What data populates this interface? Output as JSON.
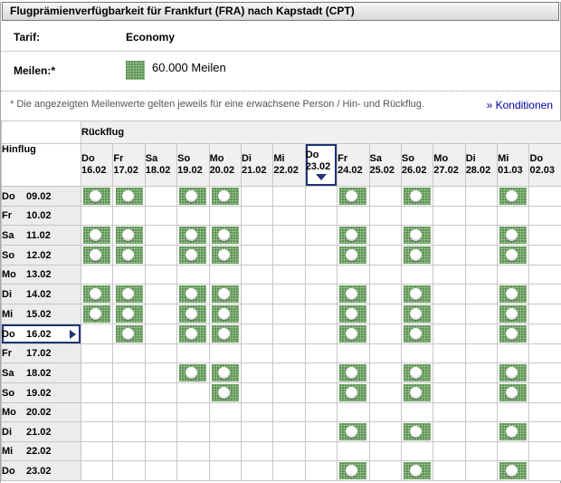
{
  "title": "Flugprämienverfügbarkeit für Frankfurt (FRA) nach Kapstadt (CPT)",
  "tarif": {
    "label": "Tarif:",
    "value": "Economy"
  },
  "meilen": {
    "label": "Meilen:*",
    "value": "60.000 Meilen",
    "icon": "green-dotted-square"
  },
  "note": "* Die angezeigten Meilenwerte gelten jeweils für eine erwachsene Person / Hin- und Rückflug.",
  "konditionen_link": "» Konditionen",
  "colors": {
    "availability_green": "#4e8b42",
    "link_blue": "#0000a0",
    "selected_navy": "#1e3473",
    "header_bg": "#f0f0f0",
    "row_header_bg": "#ececec"
  },
  "table": {
    "outbound_label": "Hinflug",
    "return_label": "Rückflug",
    "availability_icon": "green-dotted-award-dot",
    "columns": [
      {
        "day": "Do",
        "date": "16.02",
        "selected": false
      },
      {
        "day": "Fr",
        "date": "17.02",
        "selected": false
      },
      {
        "day": "Sa",
        "date": "18.02",
        "selected": false
      },
      {
        "day": "So",
        "date": "19.02",
        "selected": false
      },
      {
        "day": "Mo",
        "date": "20.02",
        "selected": false
      },
      {
        "day": "Di",
        "date": "21.02",
        "selected": false
      },
      {
        "day": "Mi",
        "date": "22.02",
        "selected": false
      },
      {
        "day": "Do",
        "date": "23.02",
        "selected": true
      },
      {
        "day": "Fr",
        "date": "24.02",
        "selected": false
      },
      {
        "day": "Sa",
        "date": "25.02",
        "selected": false
      },
      {
        "day": "So",
        "date": "26.02",
        "selected": false
      },
      {
        "day": "Mo",
        "date": "27.02",
        "selected": false
      },
      {
        "day": "Di",
        "date": "28.02",
        "selected": false
      },
      {
        "day": "Mi",
        "date": "01.03",
        "selected": false
      },
      {
        "day": "Do",
        "date": "02.03",
        "selected": false
      }
    ],
    "rows": [
      {
        "day": "Do",
        "date": "09.02",
        "selected": false,
        "availability": [
          1,
          1,
          0,
          1,
          1,
          0,
          0,
          0,
          1,
          0,
          1,
          0,
          0,
          1,
          0
        ]
      },
      {
        "day": "Fr",
        "date": "10.02",
        "selected": false,
        "availability": [
          0,
          0,
          0,
          0,
          0,
          0,
          0,
          0,
          0,
          0,
          0,
          0,
          0,
          0,
          0
        ]
      },
      {
        "day": "Sa",
        "date": "11.02",
        "selected": false,
        "availability": [
          1,
          1,
          0,
          1,
          1,
          0,
          0,
          0,
          1,
          0,
          1,
          0,
          0,
          1,
          0
        ]
      },
      {
        "day": "So",
        "date": "12.02",
        "selected": false,
        "availability": [
          1,
          1,
          0,
          1,
          1,
          0,
          0,
          0,
          1,
          0,
          1,
          0,
          0,
          1,
          0
        ]
      },
      {
        "day": "Mo",
        "date": "13.02",
        "selected": false,
        "availability": [
          0,
          0,
          0,
          0,
          0,
          0,
          0,
          0,
          0,
          0,
          0,
          0,
          0,
          0,
          0
        ]
      },
      {
        "day": "Di",
        "date": "14.02",
        "selected": false,
        "availability": [
          1,
          1,
          0,
          1,
          1,
          0,
          0,
          0,
          1,
          0,
          1,
          0,
          0,
          1,
          0
        ]
      },
      {
        "day": "Mi",
        "date": "15.02",
        "selected": false,
        "availability": [
          1,
          1,
          0,
          1,
          1,
          0,
          0,
          0,
          1,
          0,
          1,
          0,
          0,
          1,
          0
        ]
      },
      {
        "day": "Do",
        "date": "16.02",
        "selected": true,
        "availability": [
          0,
          1,
          0,
          1,
          1,
          0,
          0,
          0,
          1,
          0,
          1,
          0,
          0,
          1,
          0
        ]
      },
      {
        "day": "Fr",
        "date": "17.02",
        "selected": false,
        "availability": [
          0,
          0,
          0,
          0,
          0,
          0,
          0,
          0,
          0,
          0,
          0,
          0,
          0,
          0,
          0
        ]
      },
      {
        "day": "Sa",
        "date": "18.02",
        "selected": false,
        "availability": [
          0,
          0,
          0,
          1,
          1,
          0,
          0,
          0,
          1,
          0,
          1,
          0,
          0,
          1,
          0
        ]
      },
      {
        "day": "So",
        "date": "19.02",
        "selected": false,
        "availability": [
          0,
          0,
          0,
          0,
          1,
          0,
          0,
          0,
          1,
          0,
          1,
          0,
          0,
          1,
          0
        ]
      },
      {
        "day": "Mo",
        "date": "20.02",
        "selected": false,
        "availability": [
          0,
          0,
          0,
          0,
          0,
          0,
          0,
          0,
          0,
          0,
          0,
          0,
          0,
          0,
          0
        ]
      },
      {
        "day": "Di",
        "date": "21.02",
        "selected": false,
        "availability": [
          0,
          0,
          0,
          0,
          0,
          0,
          0,
          0,
          1,
          0,
          1,
          0,
          0,
          1,
          0
        ]
      },
      {
        "day": "Mi",
        "date": "22.02",
        "selected": false,
        "availability": [
          0,
          0,
          0,
          0,
          0,
          0,
          0,
          0,
          0,
          0,
          0,
          0,
          0,
          0,
          0
        ]
      },
      {
        "day": "Do",
        "date": "23.02",
        "selected": false,
        "availability": [
          0,
          0,
          0,
          0,
          0,
          0,
          0,
          0,
          1,
          0,
          1,
          0,
          0,
          1,
          0
        ]
      }
    ]
  }
}
